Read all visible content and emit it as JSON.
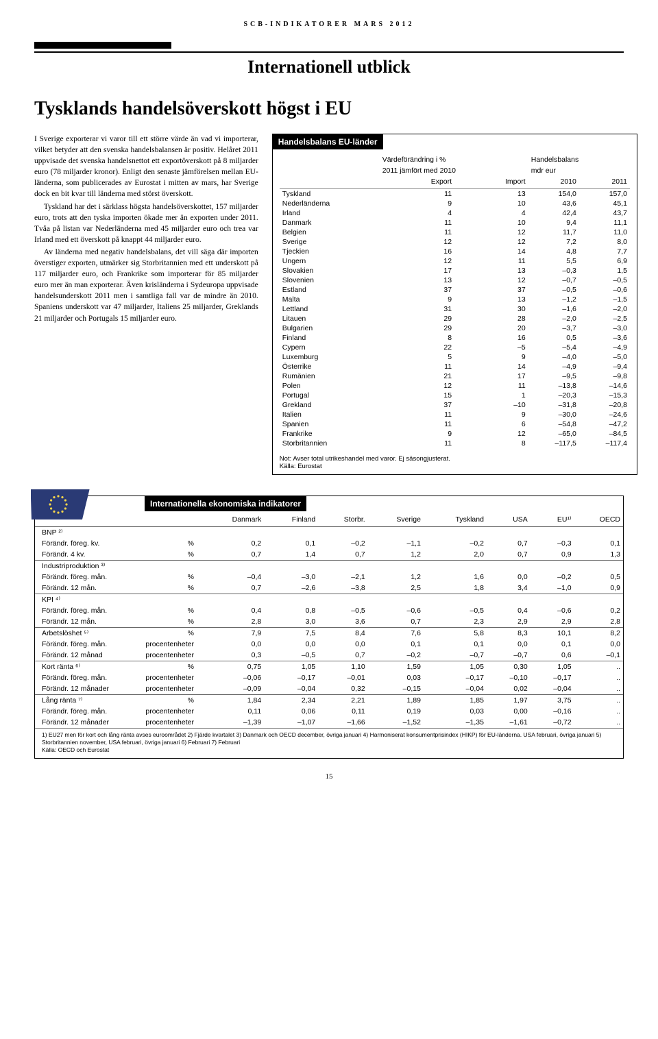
{
  "header": "SCB-INDIKATORER MARS 2012",
  "sectionTitle": "Internationell utblick",
  "articleTitle": "Tysklands handelsöverskott högst i EU",
  "bodyParagraphs": [
    "I Sverige exporterar vi varor till ett större värde än vad vi importerar, vilket betyder att den svenska handelsbalansen är positiv. Helåret 2011 uppvisade det svenska handelsnettot ett exportöverskott på 8 miljarder euro (78 miljarder kronor). Enligt den senaste jämförelsen mellan EU-länderna, som publicerades av Eurostat i mitten av mars, har Sverige dock en bit kvar till länderna med störst överskott.",
    "Tyskland har det i särklass högsta handelsöverskottet, 157 miljarder euro, trots att den tyska importen ökade mer än exporten under 2011. Tvåa på listan var Nederländerna med 45 miljarder euro och trea var Irland med ett överskott på knappt 44 miljarder euro.",
    "Av länderna med negativ handelsbalans, det vill säga där importen överstiger exporten, utmärker sig Storbritannien med ett underskott på 117 miljarder euro, och Frankrike som importerar för 85 miljarder euro mer än man exporterar. Även krisländerna i Sydeuropa uppvisade handelsunderskott 2011 men i samtliga fall var de mindre än 2010. Spaniens underskott var 47 miljarder, Italiens 25 miljarder, Greklands 21 miljarder och Portugals 15 miljarder euro."
  ],
  "tradeBox": {
    "title": "Handelsbalans EU-länder",
    "subhead1a": "Värdeförändring i %",
    "subhead1b": "Handelsbalans",
    "subhead2a": "2011 jämfört med 2010",
    "subhead2b": "mdr eur",
    "cols": [
      "",
      "Export",
      "Import",
      "2010",
      "2011"
    ],
    "rows": [
      [
        "Tyskland",
        "11",
        "13",
        "154,0",
        "157,0"
      ],
      [
        "Nederländerna",
        "9",
        "10",
        "43,6",
        "45,1"
      ],
      [
        "Irland",
        "4",
        "4",
        "42,4",
        "43,7"
      ],
      [
        "Danmark",
        "11",
        "10",
        "9,4",
        "11,1"
      ],
      [
        "Belgien",
        "11",
        "12",
        "11,7",
        "11,0"
      ],
      [
        "Sverige",
        "12",
        "12",
        "7,2",
        "8,0"
      ],
      [
        "Tjeckien",
        "16",
        "14",
        "4,8",
        "7,7"
      ],
      [
        "Ungern",
        "12",
        "11",
        "5,5",
        "6,9"
      ],
      [
        "Slovakien",
        "17",
        "13",
        "–0,3",
        "1,5"
      ],
      [
        "Slovenien",
        "13",
        "12",
        "–0,7",
        "–0,5"
      ],
      [
        "Estland",
        "37",
        "37",
        "–0,5",
        "–0,6"
      ],
      [
        "Malta",
        "9",
        "13",
        "–1,2",
        "–1,5"
      ],
      [
        "Lettland",
        "31",
        "30",
        "–1,6",
        "–2,0"
      ],
      [
        "Litauen",
        "29",
        "28",
        "–2,0",
        "–2,5"
      ],
      [
        "Bulgarien",
        "29",
        "20",
        "–3,7",
        "–3,0"
      ],
      [
        "Finland",
        "8",
        "16",
        "0,5",
        "–3,6"
      ],
      [
        "Cypern",
        "22",
        "–5",
        "–5,4",
        "–4,9"
      ],
      [
        "Luxemburg",
        "5",
        "9",
        "–4,0",
        "–5,0"
      ],
      [
        "Österrike",
        "11",
        "14",
        "–4,9",
        "–9,4"
      ],
      [
        "Rumänien",
        "21",
        "17",
        "–9,5",
        "–9,8"
      ],
      [
        "Polen",
        "12",
        "11",
        "–13,8",
        "–14,6"
      ],
      [
        "Portugal",
        "15",
        "1",
        "–20,3",
        "–15,3"
      ],
      [
        "Grekland",
        "37",
        "–10",
        "–31,8",
        "–20,8"
      ],
      [
        "Italien",
        "11",
        "9",
        "–30,0",
        "–24,6"
      ],
      [
        "Spanien",
        "11",
        "6",
        "–54,8",
        "–47,2"
      ],
      [
        "Frankrike",
        "9",
        "12",
        "–65,0",
        "–84,5"
      ],
      [
        "Storbritannien",
        "11",
        "8",
        "–117,5",
        "–117,4"
      ]
    ],
    "note1": "Not: Avser total utrikeshandel med varor. Ej säsongjusterat.",
    "note2": "Källa: Eurostat"
  },
  "indicators": {
    "title": "Internationella ekonomiska indikatorer",
    "countries": [
      "Danmark",
      "Finland",
      "Storbr.",
      "Sverige",
      "Tyskland",
      "USA",
      "EU¹⁾",
      "OECD"
    ],
    "groups": [
      {
        "label": "BNP ²⁾",
        "rows": [
          [
            "Förändr. föreg. kv.",
            "%",
            "0,2",
            "0,1",
            "–0,2",
            "–1,1",
            "–0,2",
            "0,7",
            "–0,3",
            "0,1"
          ],
          [
            "Förändr. 4 kv.",
            "%",
            "0,7",
            "1,4",
            "0,7",
            "1,2",
            "2,0",
            "0,7",
            "0,9",
            "1,3"
          ]
        ]
      },
      {
        "label": "Industriproduktion ³⁾",
        "rows": [
          [
            "Förändr. föreg. mån.",
            "%",
            "–0,4",
            "–3,0",
            "–2,1",
            "1,2",
            "1,6",
            "0,0",
            "–0,2",
            "0,5"
          ],
          [
            "Förändr. 12 mån.",
            "%",
            "0,7",
            "–2,6",
            "–3,8",
            "2,5",
            "1,8",
            "3,4",
            "–1,0",
            "0,9"
          ]
        ]
      },
      {
        "label": "KPI ⁴⁾",
        "rows": [
          [
            "Förändr. föreg. mån.",
            "%",
            "0,4",
            "0,8",
            "–0,5",
            "–0,6",
            "–0,5",
            "0,4",
            "–0,6",
            "0,2"
          ],
          [
            "Förändr. 12 mån.",
            "%",
            "2,8",
            "3,0",
            "3,6",
            "0,7",
            "2,3",
            "2,9",
            "2,9",
            "2,8"
          ]
        ]
      },
      {
        "label": "Arbetslöshet ⁵⁾",
        "rows": [
          [
            "",
            "%",
            "7,9",
            "7,5",
            "8,4",
            "7,6",
            "5,8",
            "8,3",
            "10,1",
            "8,2"
          ],
          [
            "Förändr. föreg. mån.",
            "procentenheter",
            "0,0",
            "0,0",
            "0,0",
            "0,1",
            "0,1",
            "0,0",
            "0,1",
            "0,0"
          ],
          [
            "Förändr. 12 månad",
            "procentenheter",
            "0,3",
            "–0,5",
            "0,7",
            "–0,2",
            "–0,7",
            "–0,7",
            "0,6",
            "–0,1"
          ]
        ]
      },
      {
        "label": "Kort ränta ⁶⁾",
        "rows": [
          [
            "",
            "%",
            "0,75",
            "1,05",
            "1,10",
            "1,59",
            "1,05",
            "0,30",
            "1,05",
            ".."
          ],
          [
            "Förändr. föreg. mån.",
            "procentenheter",
            "–0,06",
            "–0,17",
            "–0,01",
            "0,03",
            "–0,17",
            "–0,10",
            "–0,17",
            ".."
          ],
          [
            "Förändr. 12 månader",
            "procentenheter",
            "–0,09",
            "–0,04",
            "0,32",
            "–0,15",
            "–0,04",
            "0,02",
            "–0,04",
            ".."
          ]
        ]
      },
      {
        "label": "Lång ränta ⁷⁾",
        "rows": [
          [
            "",
            "%",
            "1,84",
            "2,34",
            "2,21",
            "1,89",
            "1,85",
            "1,97",
            "3,75",
            ".."
          ],
          [
            "Förändr. föreg. mån.",
            "procentenheter",
            "0,11",
            "0,06",
            "0,11",
            "0,19",
            "0,03",
            "0,00",
            "–0,16",
            ".."
          ],
          [
            "Förändr. 12 månader",
            "procentenheter",
            "–1,39",
            "–1,07",
            "–1,66",
            "–1,52",
            "–1,35",
            "–1,61",
            "–0,72",
            ".."
          ]
        ]
      }
    ],
    "footnote": "1) EU27 men för kort och lång ränta avses euroområdet   2) Fjärde kvartalet   3) Danmark och OECD december, övriga januari   4) Harmoniserat konsumentprisindex (HIKP) för EU-länderna. USA februari, övriga januari   5) Storbritannien november, USA februari, övriga januari   6) Februari   7) Februari",
    "source": "Källa: OECD och Eurostat"
  },
  "pageNum": "15"
}
